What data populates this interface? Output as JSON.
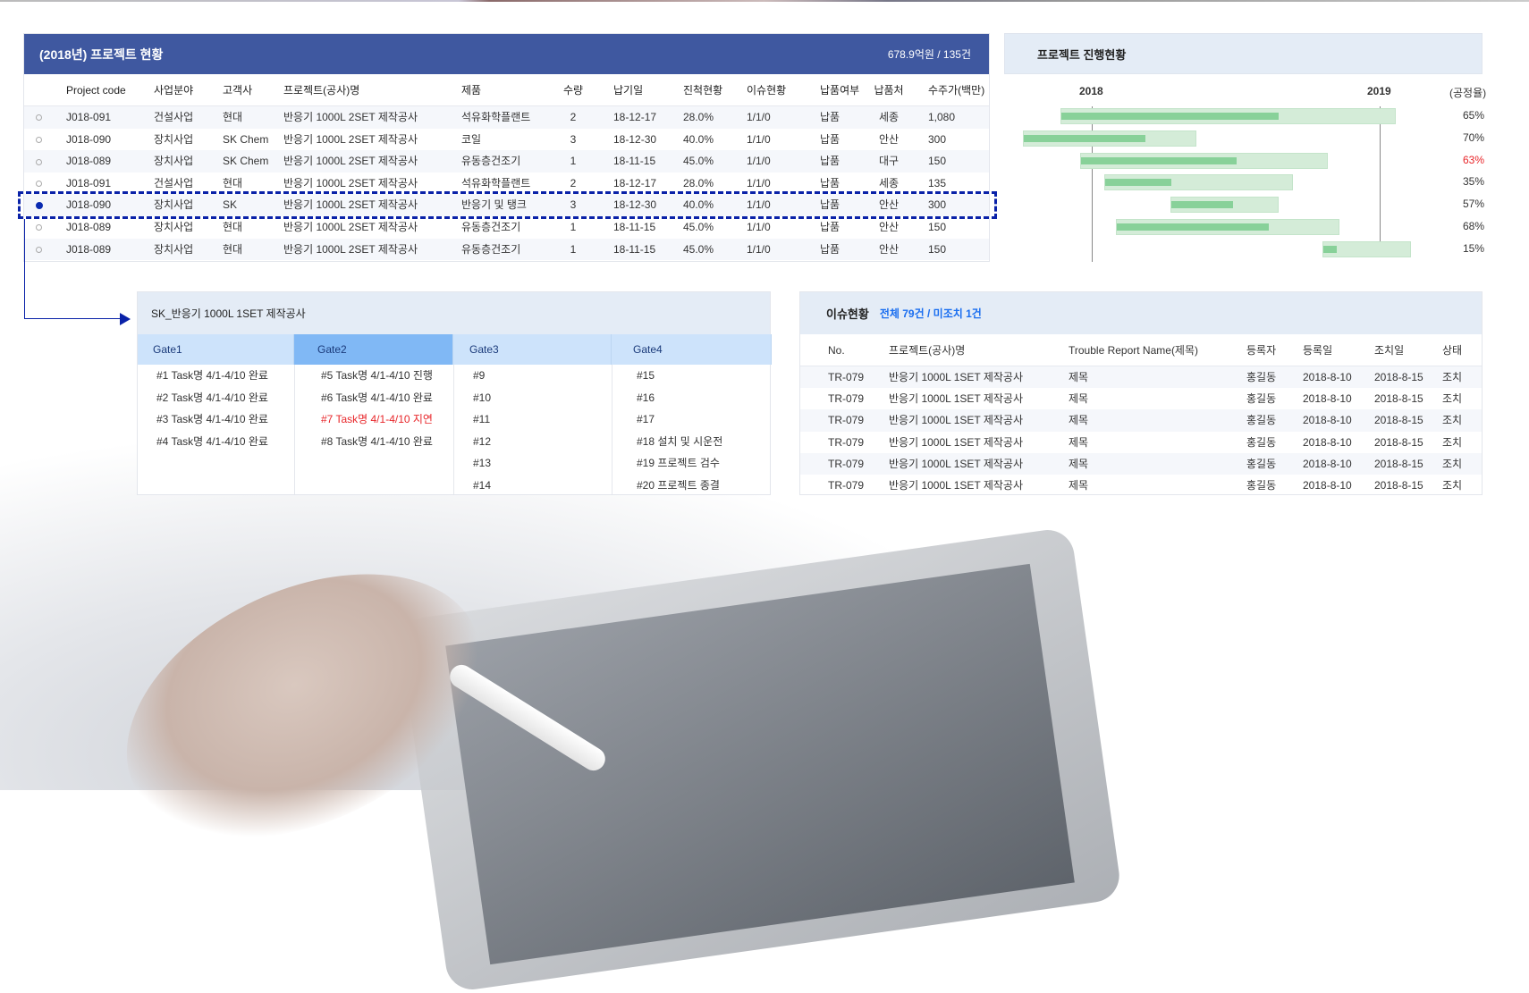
{
  "project_table": {
    "title": "(2018년) 프로젝트 현황",
    "summary": "678.9억원 / 135건",
    "columns": [
      "",
      "Project code",
      "사업분야",
      "고객사",
      "프로젝트(공사)명",
      "제품",
      "수량",
      "납기일",
      "진척현황",
      "이슈현황",
      "납품여부",
      "납품처",
      "수주가(백만)"
    ],
    "selected_row": 4,
    "rows": [
      [
        "J018-091",
        "건설사업",
        "현대",
        "반응기 1000L 2SET 제작공사",
        "석유화학플랜트",
        "2",
        "18-12-17",
        "28.0%",
        "1/1/0",
        "납품",
        "세종",
        "1,080"
      ],
      [
        "J018-090",
        "장치사업",
        "SK Chem",
        "반응기 1000L 2SET 제작공사",
        "코일",
        "3",
        "18-12-30",
        "40.0%",
        "1/1/0",
        "납품",
        "안산",
        "300"
      ],
      [
        "J018-089",
        "장치사업",
        "SK Chem",
        "반응기 1000L 2SET 제작공사",
        "유동층건조기",
        "1",
        "18-11-15",
        "45.0%",
        "1/1/0",
        "납품",
        "대구",
        "150"
      ],
      [
        "J018-091",
        "건설사업",
        "현대",
        "반응기 1000L 2SET 제작공사",
        "석유화학플랜트",
        "2",
        "18-12-17",
        "28.0%",
        "1/1/0",
        "납품",
        "세종",
        "135"
      ],
      [
        "J018-090",
        "장치사업",
        "SK",
        "반응기 1000L 2SET 제작공사",
        "반응기 및 탱크",
        "3",
        "18-12-30",
        "40.0%",
        "1/1/0",
        "납품",
        "안산",
        "300"
      ],
      [
        "J018-089",
        "장치사업",
        "현대",
        "반응기 1000L 2SET 제작공사",
        "유동층건조기",
        "1",
        "18-11-15",
        "45.0%",
        "1/1/0",
        "납품",
        "안산",
        "150"
      ],
      [
        "J018-089",
        "장치사업",
        "현대",
        "반응기 1000L 2SET 제작공사",
        "유동층건조기",
        "1",
        "18-11-15",
        "45.0%",
        "1/1/0",
        "납품",
        "안산",
        "150"
      ]
    ]
  },
  "progress": {
    "title": "프로젝트 진행현황",
    "years": [
      "2018",
      "2019"
    ],
    "rate_label": "(공정율)",
    "bars": [
      {
        "start": "2017-11-22",
        "end": "2019-01-21",
        "percent": 65,
        "label": "65%",
        "alert": false
      },
      {
        "start": "2017-10-06",
        "end": "2018-05-14",
        "percent": 70,
        "label": "70%",
        "alert": false
      },
      {
        "start": "2017-12-17",
        "end": "2018-10-27",
        "percent": 63,
        "label": "63%",
        "alert": true
      },
      {
        "start": "2018-01-17",
        "end": "2018-09-13",
        "percent": 35,
        "label": "35%",
        "alert": false
      },
      {
        "start": "2018-04-11",
        "end": "2018-08-26",
        "percent": 57,
        "label": "57%",
        "alert": false
      },
      {
        "start": "2018-02-01",
        "end": "2018-11-11",
        "percent": 68,
        "label": "68%",
        "alert": false
      },
      {
        "start": "2018-10-21",
        "end": "2019-02-10",
        "percent": 15,
        "label": "15%",
        "alert": false
      }
    ],
    "colors": {
      "track": "#d4ecd8",
      "fill": "#88d199",
      "alert": "#e8262a"
    }
  },
  "gates": {
    "title": "SK_반응기 1000L 1SET 제작공사",
    "selected": 1,
    "columns": [
      {
        "label": "Gate1",
        "tasks": [
          {
            "text": "#1 Task명 4/1-4/10 완료"
          },
          {
            "text": "#2 Task명 4/1-4/10 완료"
          },
          {
            "text": "#3 Task명 4/1-4/10 완료"
          },
          {
            "text": "#4 Task명 4/1-4/10 완료"
          }
        ]
      },
      {
        "label": "Gate2",
        "tasks": [
          {
            "text": "#5 Task명 4/1-4/10 진행"
          },
          {
            "text": "#6 Task명 4/1-4/10 완료"
          },
          {
            "text": "#7 Task명 4/1-4/10 지연",
            "alert": true
          },
          {
            "text": "#8 Task명 4/1-4/10 완료"
          }
        ]
      },
      {
        "label": "Gate3",
        "tasks": [
          {
            "text": "#9"
          },
          {
            "text": "#10"
          },
          {
            "text": "#11"
          },
          {
            "text": "#12"
          },
          {
            "text": "#13"
          },
          {
            "text": "#14"
          }
        ]
      },
      {
        "label": "Gate4",
        "tasks": [
          {
            "text": "#15"
          },
          {
            "text": "#16"
          },
          {
            "text": "#17"
          },
          {
            "text": "#18  설치 및 시운전"
          },
          {
            "text": "#19  프로젝트 검수"
          },
          {
            "text": "#20  프로젝트 종결"
          }
        ]
      }
    ]
  },
  "issues": {
    "title": "이슈현황",
    "count": "전체 79건 /  미조치 1건",
    "columns": [
      "No.",
      "프로젝트(공사)명",
      "Trouble Report Name(제목)",
      "등록자",
      "등록일",
      "조치일",
      "상태"
    ],
    "rows": [
      [
        "TR-079",
        "반응기 1000L 1SET 제작공사",
        "제목",
        "홍길동",
        "2018-8-10",
        "2018-8-15",
        "조치"
      ],
      [
        "TR-079",
        "반응기 1000L 1SET 제작공사",
        "제목",
        "홍길동",
        "2018-8-10",
        "2018-8-15",
        "조치"
      ],
      [
        "TR-079",
        "반응기 1000L 1SET 제작공사",
        "제목",
        "홍길동",
        "2018-8-10",
        "2018-8-15",
        "조치"
      ],
      [
        "TR-079",
        "반응기 1000L 1SET 제작공사",
        "제목",
        "홍길동",
        "2018-8-10",
        "2018-8-15",
        "조치"
      ],
      [
        "TR-079",
        "반응기 1000L 1SET 제작공사",
        "제목",
        "홍길동",
        "2018-8-10",
        "2018-8-15",
        "조치"
      ],
      [
        "TR-079",
        "반응기 1000L 1SET 제작공사",
        "제목",
        "홍길동",
        "2018-8-10",
        "2018-8-15",
        "조치"
      ]
    ]
  }
}
